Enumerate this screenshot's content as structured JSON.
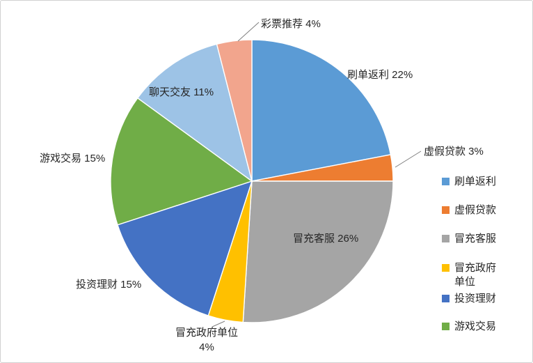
{
  "chart_data": {
    "type": "pie",
    "title": "",
    "categories": [
      "刷单返利",
      "虚假贷款",
      "冒充客服",
      "冒充政府单位",
      "投资理财",
      "游戏交易",
      "聊天交友",
      "彩票推荐"
    ],
    "values": [
      22,
      3,
      26,
      4,
      15,
      15,
      11,
      4
    ],
    "unit": "%",
    "colors": [
      "#5B9BD5",
      "#ED7D31",
      "#A5A5A5",
      "#FFC000",
      "#4472C4",
      "#70AD47",
      "#9DC3E6",
      "#F2A58D"
    ],
    "start_angle_deg": 0,
    "direction": "clockwise",
    "legend_position": "right",
    "legend_items": [
      "刷单返利",
      "虚假贷款",
      "冒充客服",
      "冒充政府单位",
      "投资理财",
      "游戏交易"
    ],
    "labels": {
      "shuadan": "刷单返利 22%",
      "xujia": "虚假贷款 3%",
      "kefu": "冒充客服 26%",
      "zhengfu_line1": "冒充政府单位",
      "zhengfu_line2": "4%",
      "touzi": "投资理财 15%",
      "youxi": "游戏交易 15%",
      "liaotian": "聊天交友 11%",
      "caipiao": "彩票推荐 4%"
    }
  }
}
